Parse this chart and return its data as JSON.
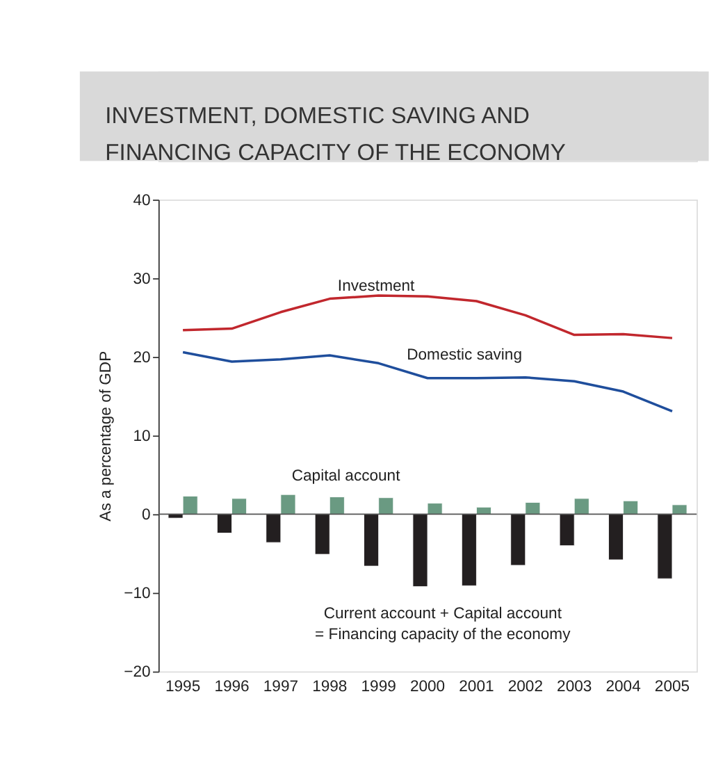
{
  "chart_data": {
    "type": "bar",
    "title": "INVESTMENT, DOMESTIC SAVING AND\nFINANCING CAPACITY OF THE ECONOMY",
    "ylabel": "As a percentage of GDP",
    "categories": [
      "1995",
      "1996",
      "1997",
      "1998",
      "1999",
      "2000",
      "2001",
      "2002",
      "2003",
      "2004",
      "2005"
    ],
    "series": [
      {
        "name": "Investment",
        "type": "line",
        "color": "#c1272d",
        "values": [
          23.4,
          23.6,
          25.7,
          27.4,
          27.8,
          27.7,
          27.1,
          25.3,
          22.8,
          22.9,
          22.4
        ]
      },
      {
        "name": "Domestic saving",
        "type": "line",
        "color": "#1f4e9c",
        "values": [
          20.6,
          19.4,
          19.7,
          20.2,
          19.2,
          17.3,
          17.3,
          17.4,
          16.9,
          15.6,
          13.1
        ]
      },
      {
        "name": "Current account + Capital account\n= Financing capacity of the economy",
        "color": "#231f20",
        "values": [
          -0.5,
          -2.4,
          -3.6,
          -5.1,
          -6.6,
          -9.2,
          -9.1,
          -6.5,
          -4.0,
          -5.8,
          -8.2
        ]
      },
      {
        "name": "Capital account",
        "color": "#6a9a82",
        "values": [
          2.3,
          2.0,
          2.5,
          2.2,
          2.1,
          1.4,
          0.9,
          1.5,
          2.0,
          1.7,
          1.2
        ]
      }
    ],
    "ylim": [
      -20,
      40
    ],
    "yticks": [
      -20,
      -10,
      0,
      10,
      20,
      30,
      40
    ]
  }
}
